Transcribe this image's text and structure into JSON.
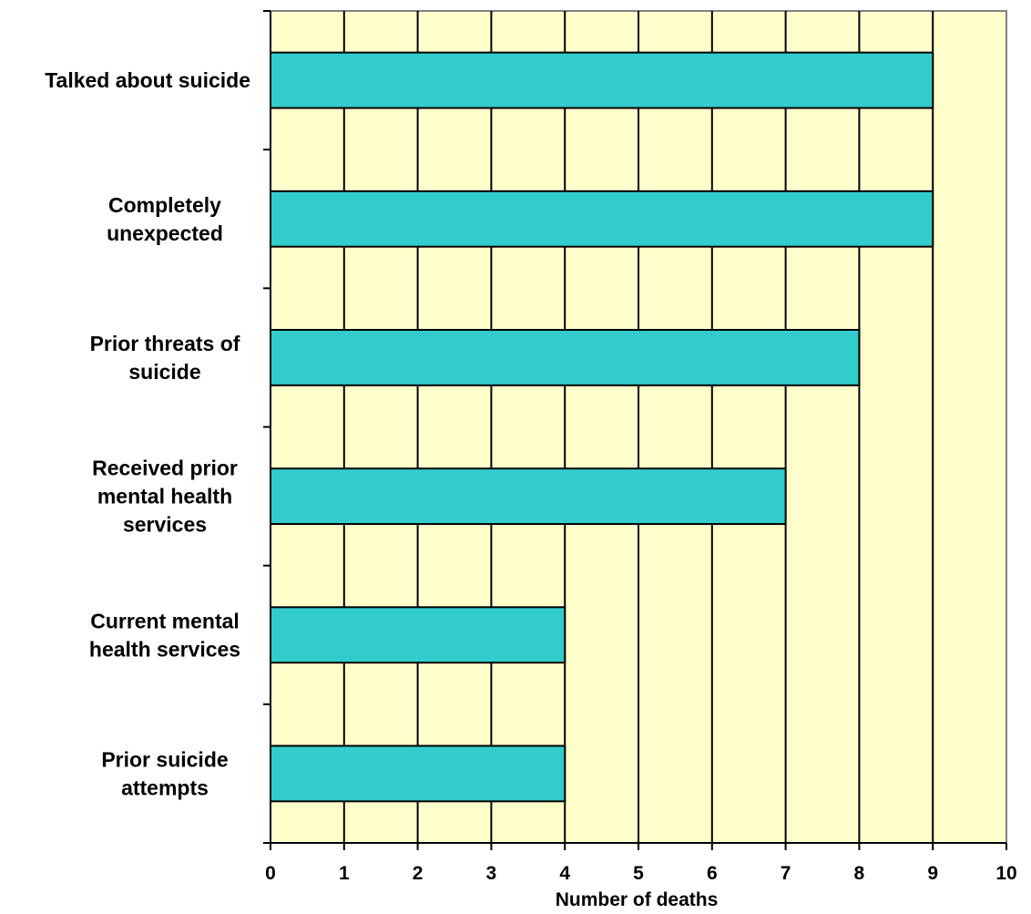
{
  "chart_data": {
    "type": "bar",
    "orientation": "horizontal",
    "categories": [
      "Talked about suicide",
      "Completely unexpected",
      "Prior threats of suicide",
      "Received prior mental health services",
      "Current mental health services",
      "Prior suicide attempts"
    ],
    "category_label_lines": [
      [
        "Talked about suicide"
      ],
      [
        "Completely",
        "unexpected"
      ],
      [
        "Prior threats of",
        "suicide"
      ],
      [
        "Received prior",
        "mental health",
        "services"
      ],
      [
        "Current mental",
        "health services"
      ],
      [
        "Prior suicide",
        "attempts"
      ]
    ],
    "values": [
      9,
      9,
      8,
      7,
      4,
      4
    ],
    "xlabel": "Number of deaths",
    "ylabel": "",
    "xlim": [
      0,
      10
    ],
    "xticks": [
      "0",
      "1",
      "2",
      "3",
      "4",
      "5",
      "6",
      "7",
      "8",
      "9",
      "10"
    ],
    "grid": true,
    "legend": "none",
    "colors": {
      "bar": "#33cccc",
      "plot_background": "#ffffcc",
      "gridline": "#000000",
      "axis": "#808080"
    }
  }
}
